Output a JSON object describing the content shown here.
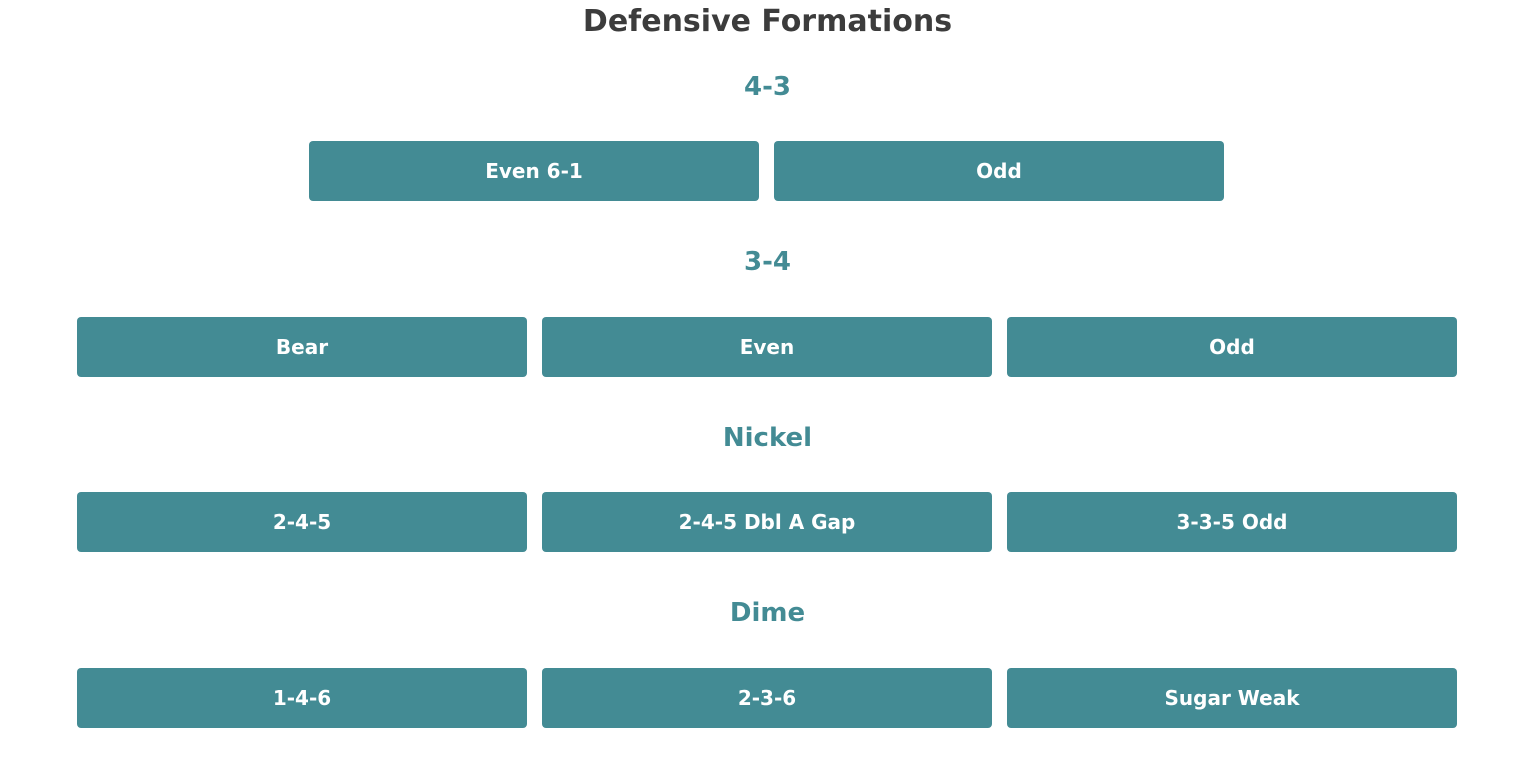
{
  "page": {
    "title": "Defensive Formations"
  },
  "sections": [
    {
      "heading": "4-3",
      "buttons": [
        "Even 6-1",
        "Odd"
      ]
    },
    {
      "heading": "3-4",
      "buttons": [
        "Bear",
        "Even",
        "Odd"
      ]
    },
    {
      "heading": "Nickel",
      "buttons": [
        "2-4-5",
        "2-4-5 Dbl A Gap",
        "3-3-5 Odd"
      ]
    },
    {
      "heading": "Dime",
      "buttons": [
        "1-4-6",
        "2-3-6",
        "Sugar Weak"
      ]
    }
  ],
  "colors": {
    "accent": "#438b94",
    "title": "#3c3c3c",
    "button_text": "#ffffff",
    "background": "#ffffff"
  }
}
